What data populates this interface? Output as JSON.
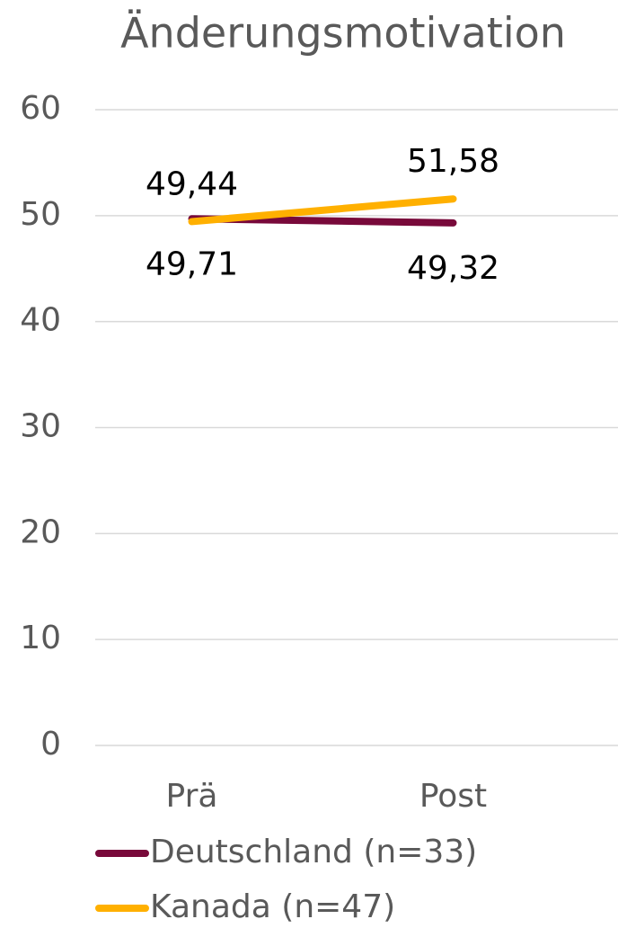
{
  "chart_data": {
    "type": "line",
    "title": "Änderungsmotivation",
    "categories": [
      "Prä",
      "Post"
    ],
    "series": [
      {
        "name": "Deutschland (n=33)",
        "color": "#78093a",
        "values": [
          49.71,
          49.32
        ],
        "value_labels": [
          "49,71",
          "49,32"
        ]
      },
      {
        "name": "Kanada (n=47)",
        "color": "#ffb000",
        "values": [
          49.44,
          51.58
        ],
        "value_labels": [
          "49,44",
          "51,58"
        ]
      }
    ],
    "ylim": [
      0,
      60
    ],
    "yticks": [
      0,
      10,
      20,
      30,
      40,
      50,
      60
    ],
    "grid": true,
    "legend": "bottom"
  }
}
